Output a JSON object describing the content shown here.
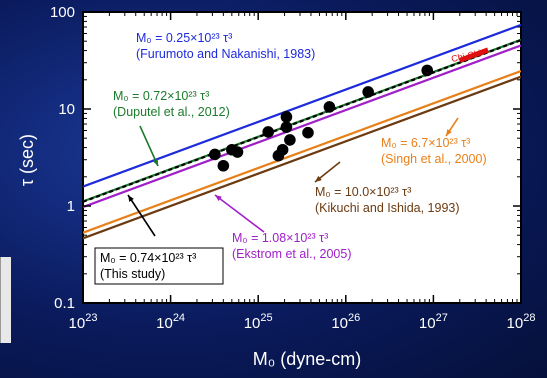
{
  "chart_data": {
    "type": "scatter",
    "xlabel": "M₀ (dyne-cm)",
    "ylabel": "τ (sec)",
    "xscale": "log",
    "yscale": "log",
    "xlim": [
      1e+23,
      1e+28
    ],
    "ylim": [
      0.1,
      100
    ],
    "x_tick_labels": [
      "10^23",
      "10^24",
      "10^25",
      "10^26",
      "10^27",
      "10^28"
    ],
    "y_tick_labels": [
      "100",
      "10",
      "1",
      "0.1"
    ],
    "points": [
      {
        "x": 3.2e+24,
        "y": 3.4
      },
      {
        "x": 4e+24,
        "y": 2.6
      },
      {
        "x": 5e+24,
        "y": 3.8
      },
      {
        "x": 5.8e+24,
        "y": 3.6
      },
      {
        "x": 1.3e+25,
        "y": 5.8
      },
      {
        "x": 1.7e+25,
        "y": 3.3
      },
      {
        "x": 1.9e+25,
        "y": 3.8
      },
      {
        "x": 2.1e+25,
        "y": 8.3
      },
      {
        "x": 2.1e+25,
        "y": 6.5
      },
      {
        "x": 2.3e+25,
        "y": 4.8
      },
      {
        "x": 3.7e+25,
        "y": 5.7
      },
      {
        "x": 6.5e+25,
        "y": 10.5
      },
      {
        "x": 1.8e+26,
        "y": 15.0
      },
      {
        "x": 8.5e+26,
        "y": 25.0
      }
    ],
    "scaling_lines": [
      {
        "coef": 0.25,
        "color": "#1e2bdc",
        "dash": "solid",
        "line1": "M₀ = 0.25×10²³ τ³",
        "line2": "(Furumoto and Nakanishi, 1983)"
      },
      {
        "coef": 0.72,
        "color": "#1a7a2a",
        "dash": "solid",
        "line1": "M₀ = 0.72×10²³ τ³",
        "line2": "(Duputel et al., 2012)"
      },
      {
        "coef": 0.74,
        "color": "#000000",
        "dash": "dashed",
        "line1": "M₀ = 0.74×10²³ τ³",
        "line2": "(This study)"
      },
      {
        "coef": 1.08,
        "color": "#a020c8",
        "dash": "solid",
        "line1": "M₀ = 1.08×10²³ τ³",
        "line2": "(Ekstrom et al., 2005)"
      },
      {
        "coef": 6.7,
        "color": "#e8801a",
        "dash": "solid",
        "line1": "M₀ = 6.7×10²³ τ³",
        "line2": "(Singh et al., 2000)"
      },
      {
        "coef": 10.0,
        "color": "#6b3a10",
        "dash": "solid",
        "line1": "M₀ = 10.0×10²³ τ³",
        "line2": "(Kikuchi and Ishida, 1993)"
      }
    ],
    "highlight_label": "Chi-Chi",
    "highlight_color": "#e01010",
    "grid": false
  }
}
